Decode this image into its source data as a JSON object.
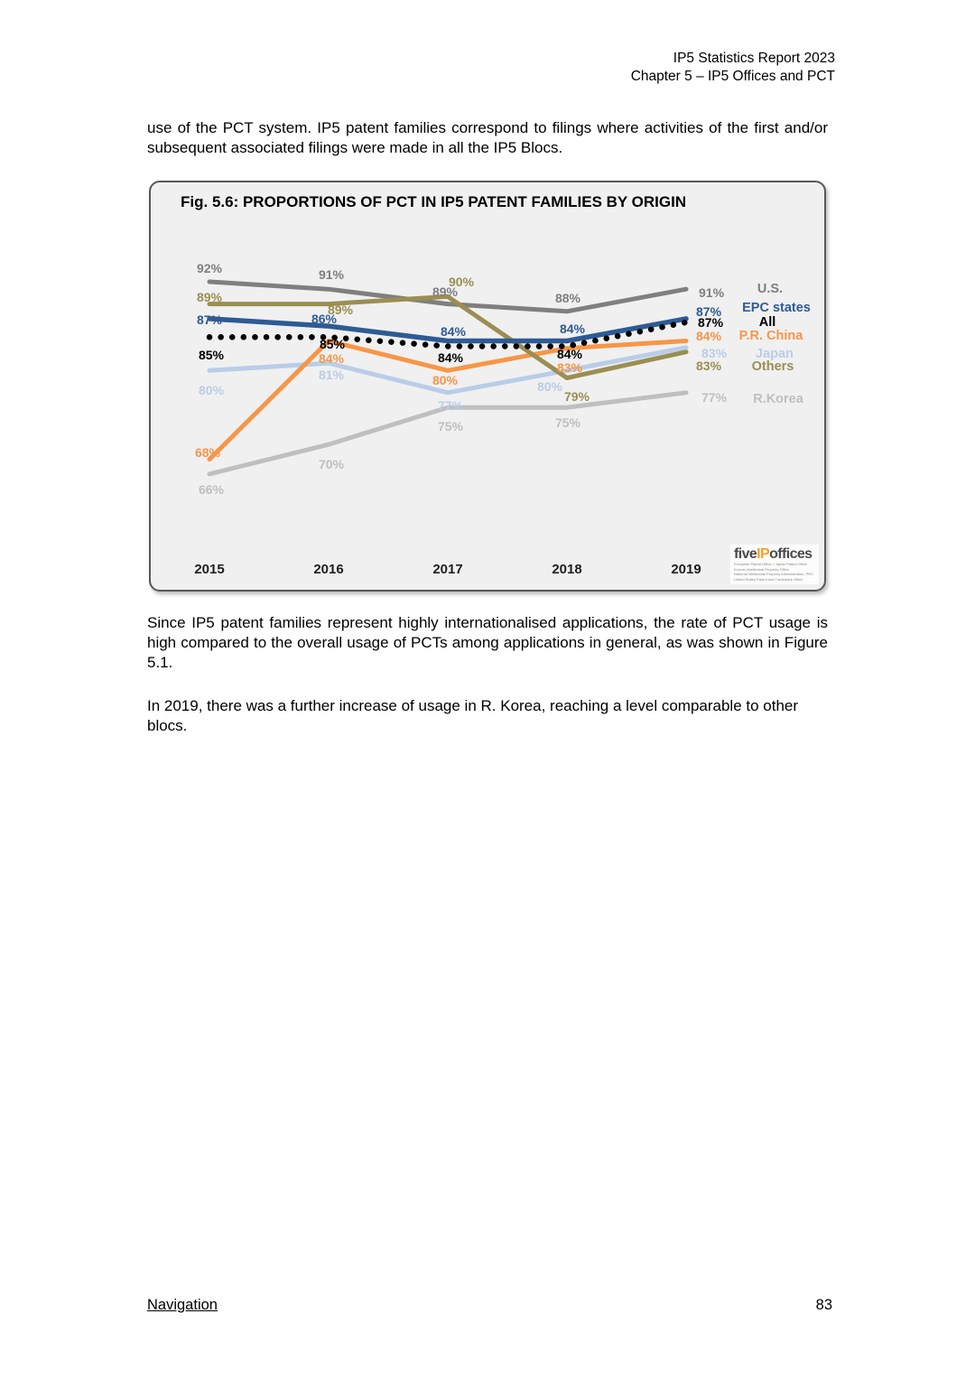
{
  "page": {
    "header": {
      "line1": "IP5 Statistics Report 2023",
      "line2": "Chapter 5 – IP5 Offices and PCT"
    },
    "intro": "use of the PCT system. IP5 patent families correspond to filings where activities of the first and/or subsequent associated filings were made in all the IP5 Blocs.",
    "para1": "Since IP5 patent families represent highly internationalised applications, the rate of PCT usage is high compared to the overall usage of PCTs among applications in general, as was shown in Figure 5.1.",
    "para2": "In 2019, there was a further increase of usage in R. Korea, reaching a level comparable to other blocs.",
    "footer": {
      "nav": "Navigation",
      "page_number": "83"
    }
  },
  "figure": {
    "title": "Fig. 5.6: PROPORTIONS OF PCT IN IP5 PATENT FAMILIES BY ORIGIN",
    "logo": {
      "brand_prefix": "five",
      "brand_mid": "IP",
      "brand_suffix": "offices",
      "sublines": [
        "European Patent Office",
        "Japan Patent Office",
        "Korean Intellectual Property Office",
        "National Intellectual Property Administration, PRC",
        "United States Patent and Trademark Office"
      ]
    }
  },
  "chart_data": {
    "type": "line",
    "title": "Fig. 5.6: PROPORTIONS OF PCT IN IP5 PATENT FAMILIES BY ORIGIN",
    "x": [
      2015,
      2016,
      2017,
      2018,
      2019
    ],
    "xlabel": "",
    "ylabel": "",
    "ylim": [
      60,
      96
    ],
    "grid": false,
    "legend_position": "right",
    "value_labels": "percent shown at every data point",
    "series": [
      {
        "name": "U.S.",
        "color": "#7f7f7f",
        "style": "solid",
        "values": [
          92,
          91,
          89,
          88,
          91
        ]
      },
      {
        "name": "EPC states",
        "color": "#2e5b94",
        "style": "solid",
        "values": [
          87,
          86,
          84,
          84,
          87
        ]
      },
      {
        "name": "All",
        "color": "#000000",
        "style": "dotted",
        "values": [
          85,
          85,
          84,
          84,
          87
        ]
      },
      {
        "name": "P.R. China",
        "color": "#f79646",
        "style": "solid",
        "values": [
          68,
          84,
          80,
          83,
          84
        ]
      },
      {
        "name": "Japan",
        "color": "#b9cde8",
        "style": "solid",
        "values": [
          80,
          81,
          77,
          80,
          83
        ]
      },
      {
        "name": "Others",
        "color": "#9b8e51",
        "style": "solid",
        "values": [
          89,
          89,
          90,
          79,
          83
        ]
      },
      {
        "name": "R.Korea",
        "color": "#bfbfbf",
        "style": "solid",
        "values": [
          66,
          70,
          75,
          75,
          77
        ]
      }
    ]
  }
}
